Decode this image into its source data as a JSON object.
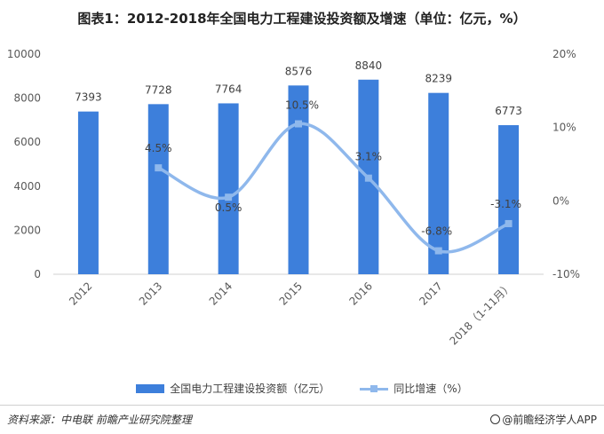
{
  "title": "图表1：2012-2018年全国电力工程建设投资额及增速（单位：亿元，%）",
  "chart_data": {
    "type": "bar",
    "categories": [
      "2012",
      "2013",
      "2014",
      "2015",
      "2016",
      "2017",
      "2018（1-11月）"
    ],
    "series": [
      {
        "name": "全国电力工程建设投资额（亿元）",
        "type": "bar",
        "axis": "left",
        "values": [
          7393,
          7728,
          7764,
          8576,
          8840,
          8239,
          6773
        ],
        "labels": [
          "7393",
          "7728",
          "7764",
          "8576",
          "8840",
          "8239",
          "6773"
        ],
        "color": "#3d7fdb"
      },
      {
        "name": "同比增速（%）",
        "type": "line",
        "axis": "right",
        "values": [
          null,
          4.5,
          0.5,
          10.5,
          3.1,
          -6.8,
          -3.1
        ],
        "labels": [
          "",
          "4.5%",
          "0.5%",
          "10.5%",
          "3.1%",
          "-6.8%",
          "-3.1%"
        ],
        "color": "#8fb8ec"
      }
    ],
    "y_left": {
      "ticks": [
        "0",
        "2000",
        "4000",
        "6000",
        "8000",
        "10000"
      ],
      "lim": [
        0,
        10000
      ]
    },
    "y_right": {
      "ticks": [
        "-10%",
        "0%",
        "10%",
        "20%"
      ],
      "lim": [
        -10,
        20
      ]
    },
    "grid": false,
    "legend_position": "bottom"
  },
  "legend": {
    "bar_label": "全国电力工程建设投资额（亿元）",
    "line_label": "同比增速（%）"
  },
  "footer": {
    "source": "资料来源：中电联  前瞻产业研究院整理",
    "brand": "@前瞻经济学人APP"
  }
}
